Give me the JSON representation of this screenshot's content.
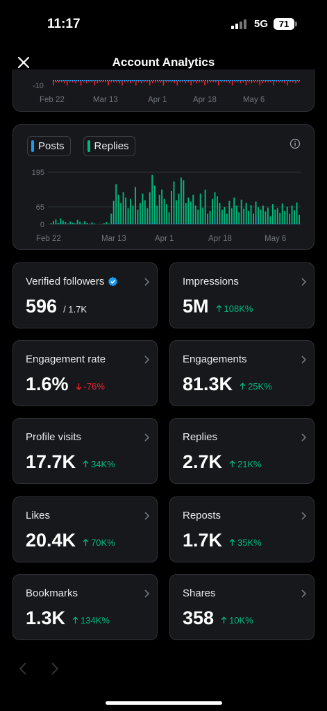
{
  "status": {
    "time": "11:17",
    "network": "5G",
    "battery": "71"
  },
  "header": {
    "title": "Account Analytics"
  },
  "top_chart": {
    "y_label": "-10",
    "x_labels": [
      "Feb 22",
      "Mar 13",
      "Apr 1",
      "Apr 18",
      "May 6"
    ]
  },
  "chart_data": {
    "type": "bar",
    "legend": [
      {
        "name": "Posts",
        "color": "#1d9bf0"
      },
      {
        "name": "Replies",
        "color": "#00ba7c"
      }
    ],
    "y_ticks": [
      "195",
      "65",
      "0"
    ],
    "ylim": [
      0,
      195
    ],
    "x_tick_labels": [
      "Feb 22",
      "Mar 13",
      "Apr 1",
      "Apr 18",
      "May 6"
    ],
    "series": [
      {
        "name": "Replies",
        "values": [
          4,
          12,
          18,
          5,
          22,
          14,
          8,
          3,
          10,
          6,
          4,
          16,
          9,
          3,
          12,
          5,
          2,
          7,
          3,
          0,
          0,
          1,
          4,
          8,
          2,
          40,
          88,
          150,
          110,
          80,
          120,
          100,
          60,
          95,
          70,
          140,
          55,
          80,
          115,
          90,
          60,
          120,
          185,
          145,
          70,
          110,
          130,
          95,
          75,
          45,
          125,
          160,
          90,
          115,
          175,
          165,
          80,
          100,
          85,
          110,
          70,
          55,
          115,
          62,
          130,
          40,
          50,
          95,
          120,
          105,
          80,
          55,
          65,
          40,
          88,
          60,
          100,
          70,
          45,
          92,
          58,
          80,
          50,
          72,
          40,
          85,
          64,
          55,
          70,
          48,
          62,
          30,
          75,
          55,
          60,
          42,
          78,
          50,
          66,
          40,
          70,
          52,
          82,
          35
        ]
      },
      {
        "name": "Posts",
        "values": [
          1,
          2,
          2,
          1,
          3,
          2,
          1,
          1,
          2,
          1,
          1,
          2,
          1,
          1,
          2,
          1,
          1,
          1,
          1,
          0,
          0,
          0,
          1,
          1,
          1,
          2,
          3,
          4,
          3,
          2,
          3,
          3,
          2,
          3,
          2,
          4,
          2,
          2,
          3,
          3,
          2,
          3,
          4,
          4,
          2,
          3,
          3,
          3,
          2,
          2,
          3,
          4,
          3,
          3,
          4,
          4,
          2,
          3,
          3,
          3,
          2,
          2,
          3,
          2,
          4,
          2,
          2,
          3,
          25,
          10,
          4,
          2,
          3,
          2,
          3,
          2,
          3,
          2,
          2,
          3,
          2,
          3,
          2,
          3,
          2,
          28,
          3,
          2,
          3,
          2,
          3,
          2,
          3,
          2,
          3,
          2,
          3,
          2,
          3,
          2,
          3,
          2,
          3,
          2
        ]
      }
    ]
  },
  "cards": [
    {
      "label": "Verified followers",
      "value": "596",
      "sub": "/ 1.7K",
      "delta": "",
      "trend": "none",
      "verified": true
    },
    {
      "label": "Impressions",
      "value": "5M",
      "sub": "",
      "delta": "108K%",
      "trend": "up",
      "verified": false
    },
    {
      "label": "Engagement rate",
      "value": "1.6%",
      "sub": "",
      "delta": "-76%",
      "trend": "down",
      "verified": false
    },
    {
      "label": "Engagements",
      "value": "81.3K",
      "sub": "",
      "delta": "25K%",
      "trend": "up",
      "verified": false
    },
    {
      "label": "Profile visits",
      "value": "17.7K",
      "sub": "",
      "delta": "34K%",
      "trend": "up",
      "verified": false
    },
    {
      "label": "Replies",
      "value": "2.7K",
      "sub": "",
      "delta": "21K%",
      "trend": "up",
      "verified": false
    },
    {
      "label": "Likes",
      "value": "20.4K",
      "sub": "",
      "delta": "70K%",
      "trend": "up",
      "verified": false
    },
    {
      "label": "Reposts",
      "value": "1.7K",
      "sub": "",
      "delta": "35K%",
      "trend": "up",
      "verified": false
    },
    {
      "label": "Bookmarks",
      "value": "1.3K",
      "sub": "",
      "delta": "134K%",
      "trend": "up",
      "verified": false
    },
    {
      "label": "Shares",
      "value": "358",
      "sub": "",
      "delta": "10K%",
      "trend": "up",
      "verified": false
    }
  ],
  "colors": {
    "up": "#00ba7c",
    "down": "#f4212e",
    "muted": "#71767b",
    "grid": "#2f3336",
    "verified": "#1d9bf0"
  }
}
